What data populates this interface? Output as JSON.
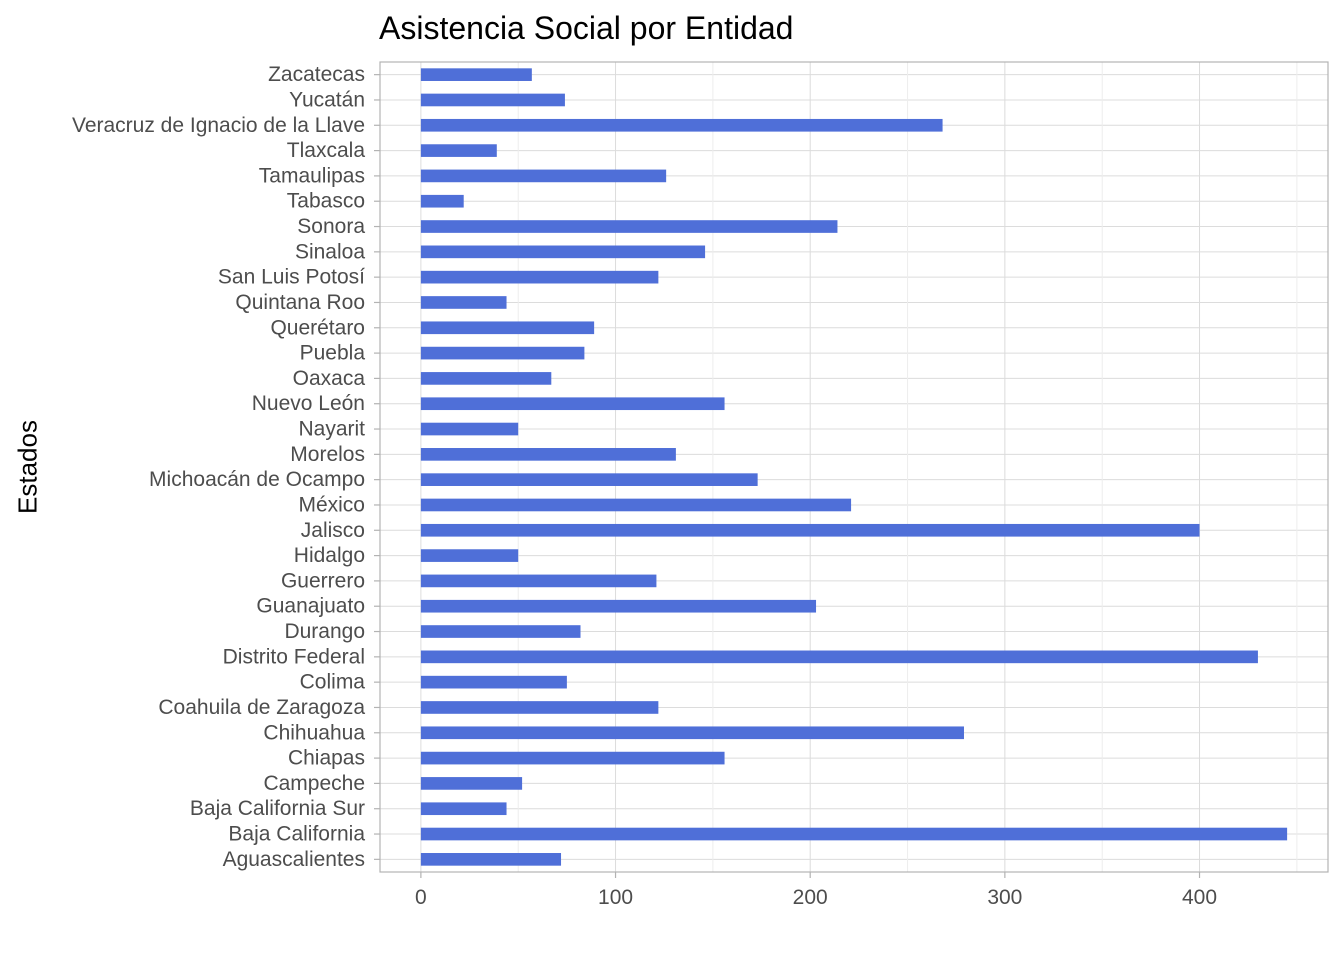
{
  "chart_data": {
    "type": "bar",
    "orientation": "horizontal",
    "title": "Asistencia Social por Entidad",
    "xlabel": "",
    "ylabel": "Estados",
    "xlim": [
      -21,
      466
    ],
    "xticks": [
      0,
      100,
      200,
      300,
      400
    ],
    "grid": true,
    "legend": "none",
    "bar_color": "#4F6FD8",
    "categories": [
      "Aguascalientes",
      "Baja California",
      "Baja California Sur",
      "Campeche",
      "Chiapas",
      "Chihuahua",
      "Coahuila de Zaragoza",
      "Colima",
      "Distrito Federal",
      "Durango",
      "Guanajuato",
      "Guerrero",
      "Hidalgo",
      "Jalisco",
      "México",
      "Michoacán de Ocampo",
      "Morelos",
      "Nayarit",
      "Nuevo León",
      "Oaxaca",
      "Puebla",
      "Querétaro",
      "Quintana Roo",
      "San Luis Potosí",
      "Sinaloa",
      "Sonora",
      "Tabasco",
      "Tamaulipas",
      "Tlaxcala",
      "Veracruz de Ignacio de la Llave",
      "Yucatán",
      "Zacatecas"
    ],
    "values": [
      72,
      445,
      44,
      52,
      156,
      279,
      122,
      75,
      430,
      82,
      203,
      121,
      50,
      400,
      221,
      173,
      131,
      50,
      156,
      67,
      84,
      89,
      44,
      122,
      146,
      214,
      22,
      126,
      39,
      268,
      74,
      57
    ]
  }
}
